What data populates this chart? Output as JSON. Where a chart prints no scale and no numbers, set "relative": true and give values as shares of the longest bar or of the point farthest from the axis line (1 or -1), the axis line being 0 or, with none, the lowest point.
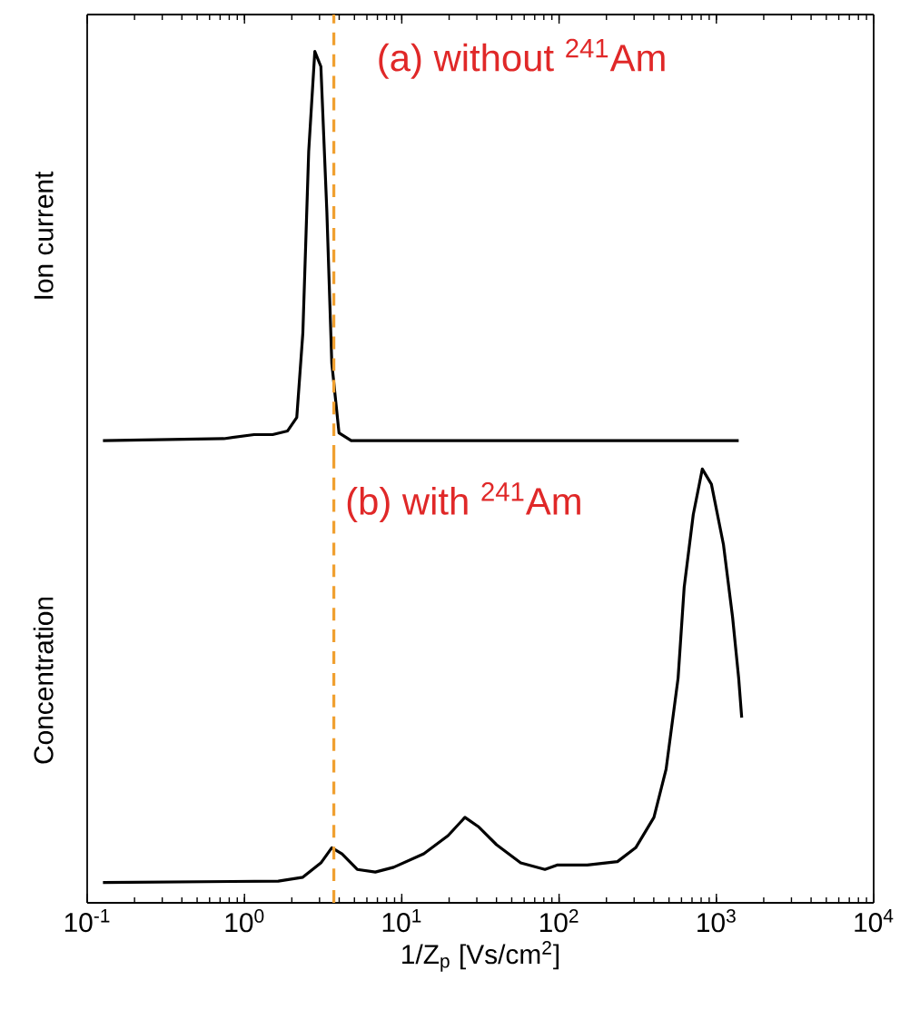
{
  "chart_data": [
    {
      "type": "line",
      "ylabel": "Ion current",
      "annotations": [
        "(a) without $^{241}$Am"
      ],
      "relative": true,
      "log": "x",
      "tick_labels": false,
      "xlim": [
        0.1,
        10000
      ],
      "xticks": [
        {
          "value": 0.1,
          "label": null
        },
        {
          "value": 1,
          "label": null
        },
        {
          "value": 10,
          "label": null
        },
        {
          "value": 100,
          "label": null
        },
        {
          "value": 1000,
          "label": null
        },
        {
          "value": 10000,
          "label": null
        }
      ],
      "ref_lines": [
        {
          "axis": "x",
          "value": 3.7,
          "label": null,
          "color": "#f0a030",
          "line_style": "dashed"
        }
      ],
      "series": [
        {
          "color": "#000000",
          "x": [
            0.126,
            0.74,
            1.15,
            1.51,
            1.88,
            2.15,
            2.35,
            2.56,
            2.8,
            3.06,
            3.34,
            3.59,
            3.99,
            4.77,
            1386
          ],
          "values": [
            0.042,
            0.047,
            0.057,
            0.057,
            0.066,
            0.099,
            0.307,
            0.754,
            1,
            0.963,
            0.605,
            0.233,
            0.061,
            0.042,
            0.042
          ]
        }
      ]
    },
    {
      "type": "line",
      "ylabel": "Concentration",
      "xlabel": "1/Z$_{p}$ [Vs/cm$^{2}$]",
      "annotations": [
        "(b) with $^{241}$Am"
      ],
      "relative": true,
      "log": "x",
      "tick_labels": "x",
      "xlim": [
        0.1,
        10000
      ],
      "xticks": [
        {
          "value": 0.1,
          "label": "10$^{-1}$"
        },
        {
          "value": 1,
          "label": "10$^{0}$"
        },
        {
          "value": 10,
          "label": "10$^{1}$"
        },
        {
          "value": 100,
          "label": "10$^{2}$"
        },
        {
          "value": 1000,
          "label": "10$^{3}$"
        },
        {
          "value": 10000,
          "label": "10$^{4}$"
        }
      ],
      "ref_lines": [
        {
          "axis": "x",
          "value": 3.7,
          "label": null,
          "color": "#f0a030",
          "line_style": "dashed"
        }
      ],
      "series": [
        {
          "color": "#000000",
          "x": [
            0.126,
            1.64,
            2.35,
            3.06,
            3.59,
            4.17,
            5.21,
            6.79,
            8.87,
            13.8,
            19.7,
            25.2,
            30.6,
            40.0,
            57.0,
            81.3,
            97,
            151,
            235,
            307,
            401,
            479,
            571,
            624,
            713,
            814,
            930,
            1109,
            1268,
            1386,
            1449
          ],
          "values": [
            0.047,
            0.05,
            0.059,
            0.092,
            0.127,
            0.113,
            0.077,
            0.071,
            0.082,
            0.113,
            0.155,
            0.197,
            0.176,
            0.134,
            0.092,
            0.077,
            0.087,
            0.087,
            0.095,
            0.127,
            0.197,
            0.308,
            0.518,
            0.727,
            0.895,
            1,
            0.965,
            0.826,
            0.658,
            0.518,
            0.427
          ]
        }
      ]
    }
  ]
}
